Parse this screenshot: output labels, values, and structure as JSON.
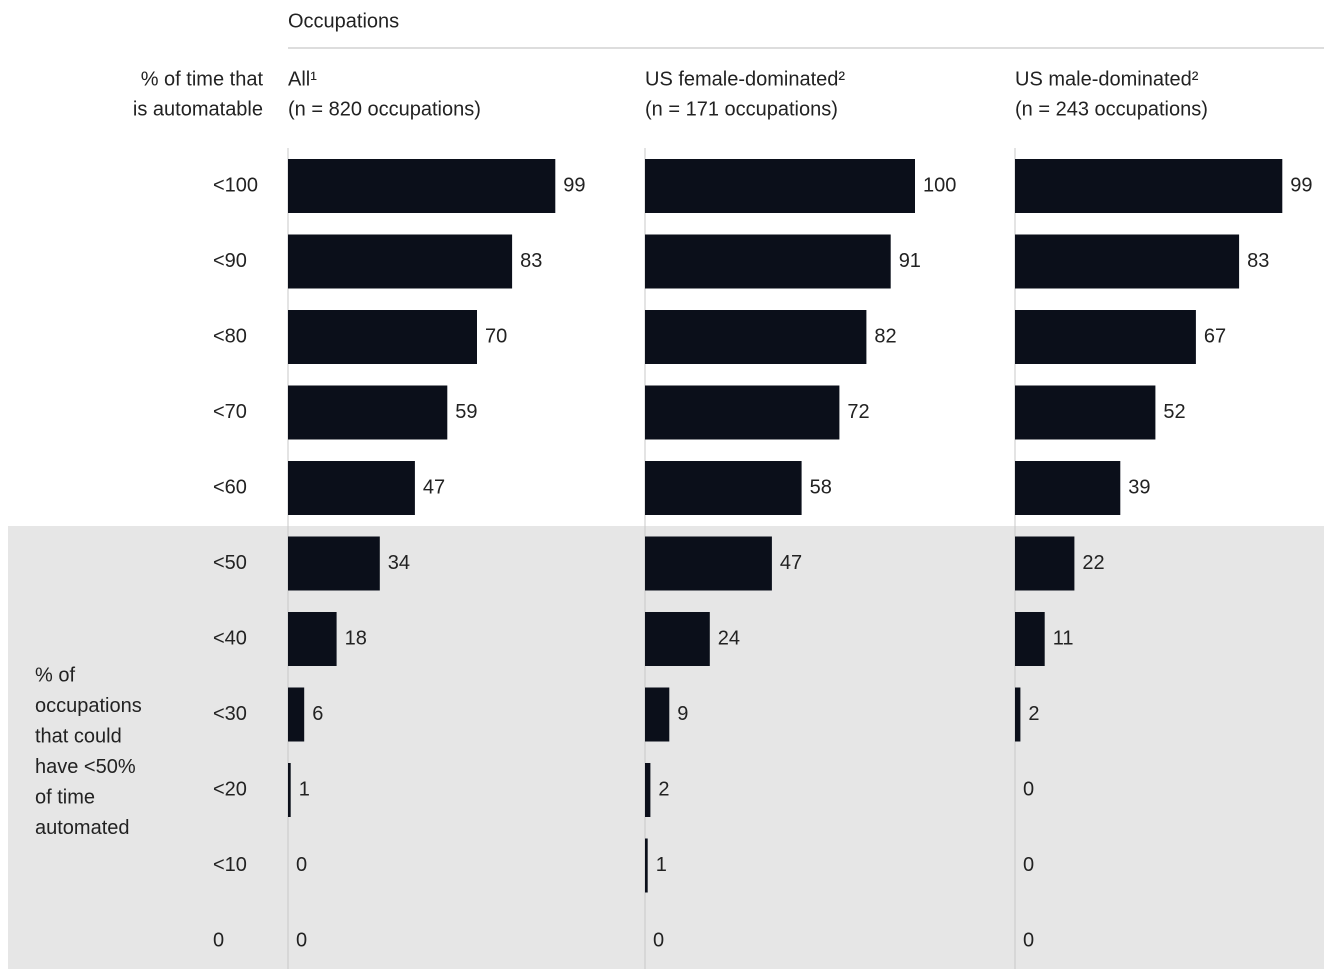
{
  "chart_data": {
    "type": "bar",
    "orientation": "horizontal",
    "header": "Occupations",
    "y_title": [
      "% of time that",
      "is automatable"
    ],
    "annotation": [
      "% of",
      "occupations",
      "that could",
      "have <50%",
      "of time",
      "automated"
    ],
    "categories": [
      "<100",
      "<90",
      "<80",
      "<70",
      "<60",
      "<50",
      "<40",
      "<30",
      "<20",
      "<10",
      "0"
    ],
    "xlim": [
      0,
      100
    ],
    "series": [
      {
        "name": "All¹",
        "subtitle": "(n = 820 occupations)",
        "color": "#0b0f1a",
        "values": [
          99,
          83,
          70,
          59,
          47,
          34,
          18,
          6,
          1,
          0,
          0
        ]
      },
      {
        "name": "US female-dominated²",
        "subtitle": "(n = 171 occupations)",
        "color": "#0b0f1a",
        "values": [
          100,
          91,
          82,
          72,
          58,
          47,
          24,
          9,
          2,
          1,
          0
        ]
      },
      {
        "name": "US male-dominated²",
        "subtitle": "(n = 243 occupations)",
        "color": "#0b0f1a",
        "values": [
          99,
          83,
          67,
          52,
          39,
          22,
          11,
          2,
          0,
          0,
          0
        ]
      }
    ]
  }
}
